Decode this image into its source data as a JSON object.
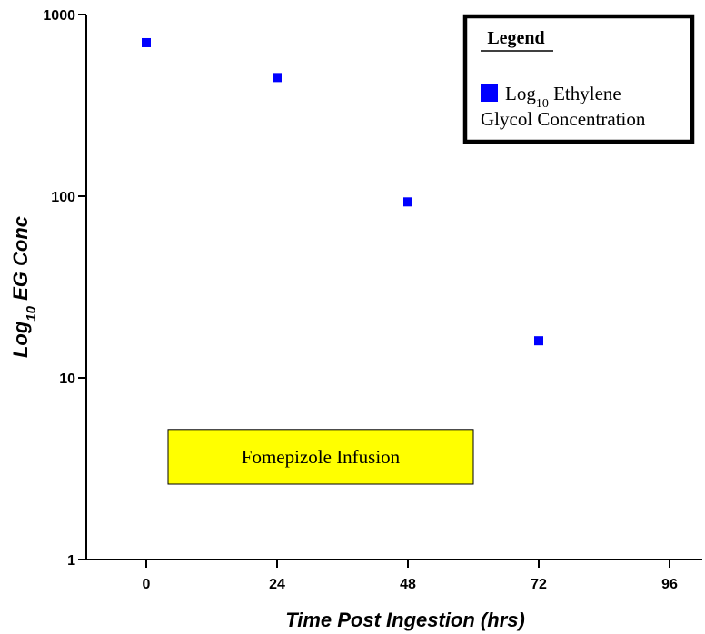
{
  "chart_data": {
    "type": "scatter",
    "xlabel": "Time Post Ingestion (hrs)",
    "ylabel_main": "Log",
    "ylabel_sub": "10",
    "ylabel_rest": " EG Conc",
    "y_scale": "log",
    "xlim": [
      -11,
      102
    ],
    "ylim": [
      1,
      1000
    ],
    "x_ticks": [
      0,
      24,
      48,
      72,
      96
    ],
    "x_tick_labels": [
      "0",
      "24",
      "48",
      "72",
      "96"
    ],
    "y_ticks": [
      1,
      10,
      100,
      1000
    ],
    "y_tick_labels": [
      "1",
      "10",
      "100",
      "1000"
    ],
    "grid": false,
    "marker_color": "#0000ff",
    "series": [
      {
        "name": "Log10 Ethylene Glycol Concentration",
        "points": [
          {
            "x": 0,
            "y": 700
          },
          {
            "x": 24,
            "y": 450
          },
          {
            "x": 48,
            "y": 93
          },
          {
            "x": 72,
            "y": 16
          }
        ]
      }
    ],
    "legend": {
      "title": "Legend",
      "placement": "top-right",
      "entry_main": "Log",
      "entry_sub": "10",
      "entry_rest": " Ethylene",
      "entry_line2": "Glycol Concentration"
    },
    "annotation": {
      "text": "Fomepizole Infusion",
      "x_start": 4,
      "x_end": 60,
      "y_low": 2.6,
      "y_high": 5.2,
      "fill": "#ffff00"
    }
  }
}
